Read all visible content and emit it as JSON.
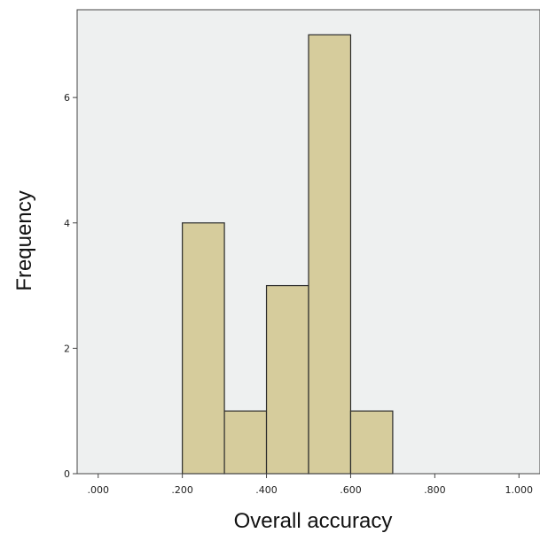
{
  "chart_data": {
    "type": "bar",
    "subtype": "histogram",
    "xlabel": "Overall accuracy",
    "ylabel": "Frequency",
    "bins": [
      {
        "start": 0.2,
        "end": 0.3,
        "count": 4
      },
      {
        "start": 0.3,
        "end": 0.4,
        "count": 1
      },
      {
        "start": 0.4,
        "end": 0.5,
        "count": 3
      },
      {
        "start": 0.5,
        "end": 0.6,
        "count": 7
      },
      {
        "start": 0.6,
        "end": 0.7,
        "count": 1
      }
    ],
    "xlim": [
      -0.05,
      1.05
    ],
    "ylim": [
      0,
      7.4
    ],
    "x_ticks": [
      {
        "value": 0.0,
        "label": ".000"
      },
      {
        "value": 0.2,
        "label": ".200"
      },
      {
        "value": 0.4,
        "label": ".400"
      },
      {
        "value": 0.6,
        "label": ".600"
      },
      {
        "value": 0.8,
        "label": ".800"
      },
      {
        "value": 1.0,
        "label": "1.000"
      }
    ],
    "y_ticks": [
      {
        "value": 0,
        "label": "0"
      },
      {
        "value": 2,
        "label": "2"
      },
      {
        "value": 4,
        "label": "4"
      },
      {
        "value": 6,
        "label": "6"
      }
    ],
    "grid": false,
    "colors": {
      "plot_background": "#eef0f0",
      "bar_fill": "#d6cc9c",
      "bar_stroke": "#2b2b2b",
      "axis": "#444444"
    }
  }
}
